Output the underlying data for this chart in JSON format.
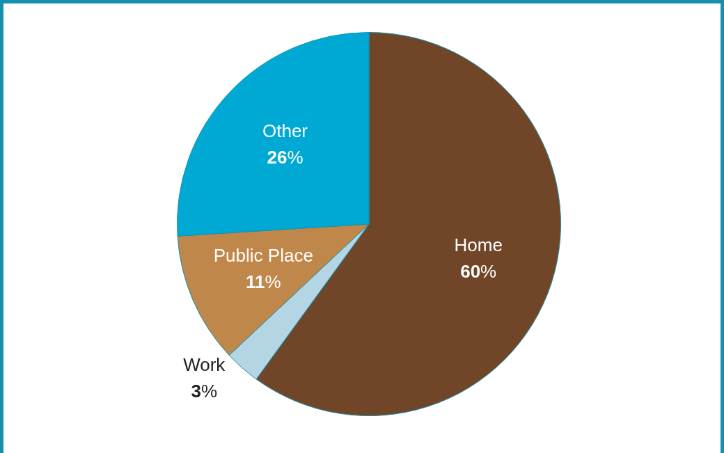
{
  "chart_data": {
    "type": "pie",
    "categories": [
      "Home",
      "Work",
      "Public Place",
      "Other"
    ],
    "values": [
      60,
      3,
      11,
      26
    ],
    "colors": [
      "#714628",
      "#b4d5e3",
      "#c0874a",
      "#00a9d4"
    ],
    "value_labels": [
      "60%",
      "3%",
      "11%",
      "26%"
    ],
    "legend": false
  }
}
